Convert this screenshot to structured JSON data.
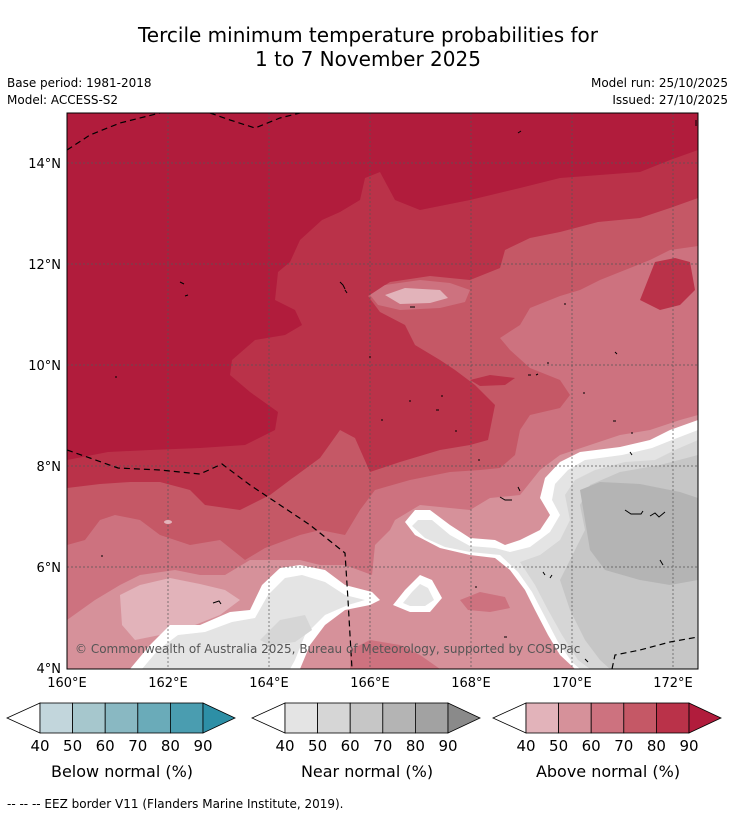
{
  "title": {
    "line1": "Tercile minimum temperature probabilities for",
    "line2": "1 to 7 November 2025"
  },
  "meta": {
    "base_period": "Base period: 1981-2018",
    "model": "Model: ACCESS-S2",
    "model_run": "Model run: 25/10/2025",
    "issued": "Issued: 27/10/2025"
  },
  "map": {
    "lat_labels": [
      "14°N",
      "12°N",
      "10°N",
      "8°N",
      "6°N",
      "4°N"
    ],
    "lon_labels": [
      "160°E",
      "162°E",
      "164°E",
      "166°E",
      "168°E",
      "170°E",
      "172°E"
    ],
    "copyright": "© Commonwealth of Australia 2025, Bureau of Meteorology, supported by COSPPac"
  },
  "colorbars": [
    {
      "label": "Below normal (%)",
      "ticks": [
        "40",
        "50",
        "60",
        "70",
        "80",
        "90"
      ],
      "colors": [
        "#ffffff",
        "#c2d6dc",
        "#a6c7cd",
        "#89b8c2",
        "#6aabb9",
        "#4a9db0",
        "#2d8fa6"
      ]
    },
    {
      "label": "Near normal (%)",
      "ticks": [
        "40",
        "50",
        "60",
        "70",
        "80",
        "90"
      ],
      "colors": [
        "#ffffff",
        "#e4e4e4",
        "#d6d6d6",
        "#c6c6c6",
        "#b4b4b4",
        "#a2a2a2",
        "#8a8a8a"
      ]
    },
    {
      "label": "Above normal (%)",
      "ticks": [
        "40",
        "50",
        "60",
        "70",
        "80",
        "90"
      ],
      "colors": [
        "#ffffff",
        "#e2b3ba",
        "#d6919a",
        "#cd727f",
        "#c55866",
        "#ba3249",
        "#b11c3c"
      ]
    }
  ],
  "footer": "--  --  -- EEZ border V11 (Flanders Marine Institute, 2019).",
  "colors": {
    "above90": "#b11c3c",
    "above80": "#ba3249",
    "above70": "#c55866",
    "above60": "#cd727f",
    "above50": "#d6919a",
    "above40": "#e2b3ba",
    "near40": "#e4e4e4",
    "near50": "#d6d6d6",
    "near60": "#c6c6c6",
    "near70": "#b4b4b4"
  }
}
